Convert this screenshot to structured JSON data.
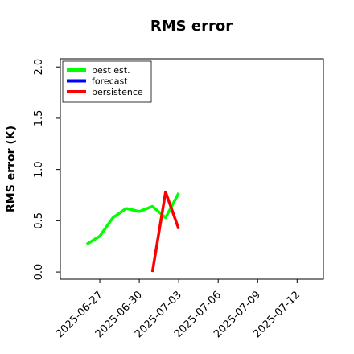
{
  "chart_data": {
    "type": "line",
    "title": "RMS error",
    "ylabel": "RMS error (K)",
    "x": [
      "2025-06-26",
      "2025-06-27",
      "2025-06-28",
      "2025-06-29",
      "2025-06-30",
      "2025-07-01",
      "2025-07-02",
      "2025-07-03"
    ],
    "series": [
      {
        "name": "best est.",
        "color": "#00ff00",
        "values": [
          0.27,
          0.35,
          0.53,
          0.62,
          0.59,
          0.64,
          0.53,
          0.77
        ]
      },
      {
        "name": "forecast",
        "color": "#0000ff",
        "values": [
          null,
          null,
          null,
          null,
          null,
          null,
          null,
          null
        ]
      },
      {
        "name": "persistence",
        "color": "#ff0000",
        "values": [
          null,
          null,
          null,
          null,
          null,
          0.0,
          0.78,
          0.42
        ]
      }
    ],
    "xlim": [
      "2025-06-24",
      "2025-07-14"
    ],
    "xticks": [
      "2025-06-27",
      "2025-06-30",
      "2025-07-03",
      "2025-07-06",
      "2025-07-09",
      "2025-07-12"
    ],
    "xtick_colors": [
      "#000000",
      "#000000",
      "#008000",
      "#000000",
      "#000000",
      "#000000"
    ],
    "ylim": [
      -0.07,
      2.08
    ],
    "yticks": [
      {
        "value": 0,
        "label": "0.0"
      },
      0.5,
      {
        "value": 1,
        "label": "1.0"
      },
      1.5,
      {
        "value": 2,
        "label": "2.0"
      }
    ],
    "legend": "upper left"
  }
}
